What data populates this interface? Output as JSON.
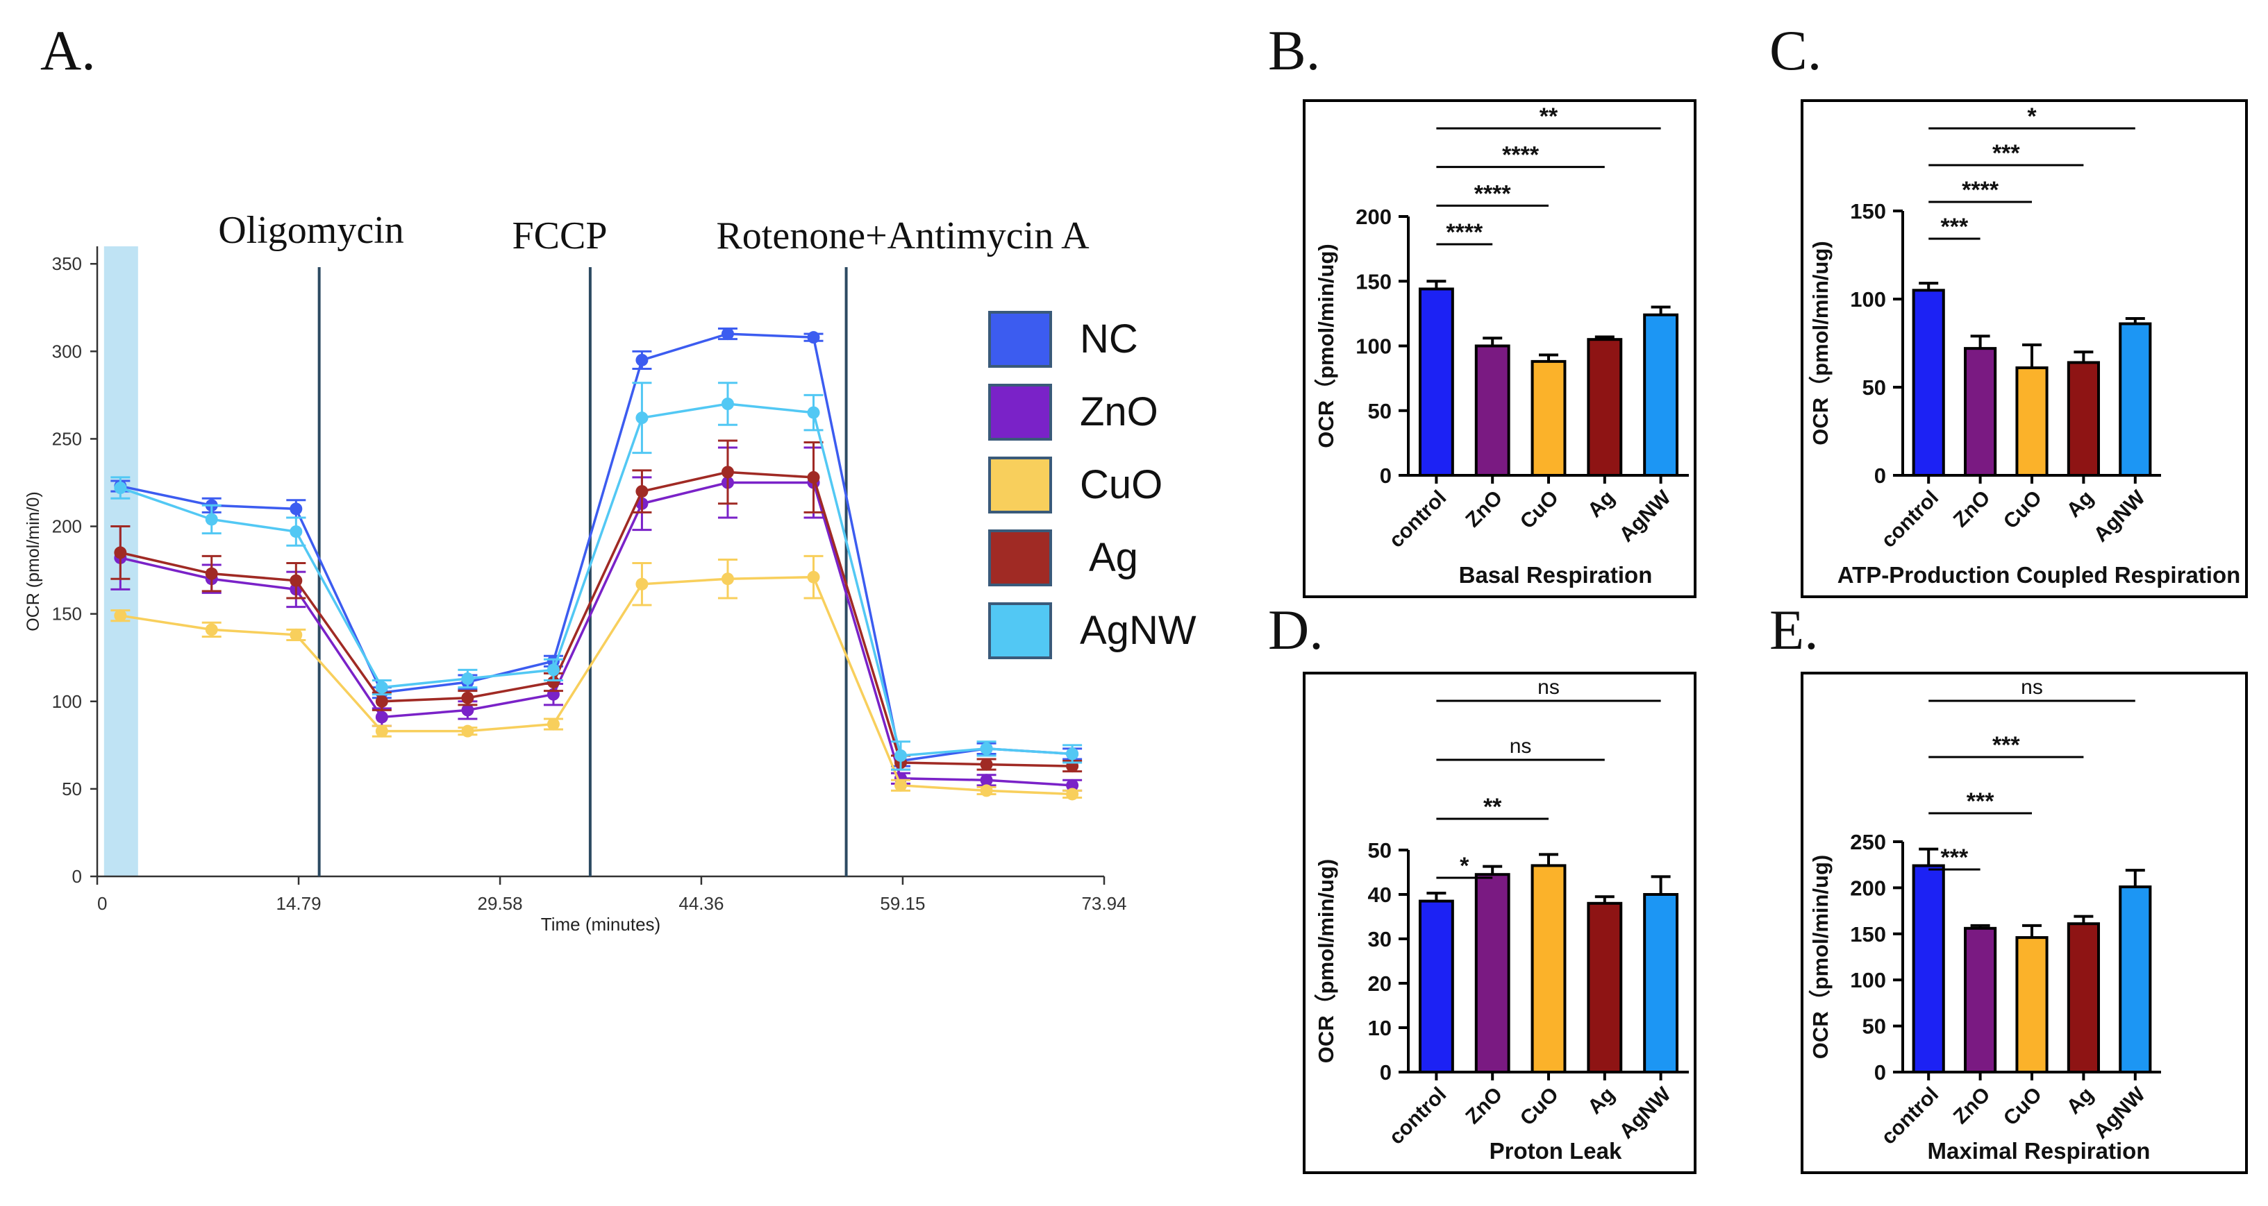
{
  "colors": {
    "NC": "#3c5cf0",
    "ZnO": "#7a22c8",
    "CuO": "#f8cf5c",
    "Ag": "#a02a24",
    "AgNW": "#52c8f4",
    "vline": "#2c4a62",
    "shade": "#bfe3f4",
    "bar_control": "#1c22f4",
    "bar_ZnO": "#7a1a82",
    "bar_CuO": "#fbb22a",
    "bar_Ag": "#8e1414",
    "bar_AgNW": "#1c96f4"
  },
  "chart_data": [
    {
      "id": "A",
      "panel_label": "A.",
      "type": "line",
      "title": "",
      "xlabel": "Time (minutes)",
      "ylabel": "OCR (pmol/min/0)",
      "xlim": [
        0,
        73.94
      ],
      "ylim": [
        0,
        360
      ],
      "x_ticks": [
        0,
        14.79,
        29.58,
        44.36,
        59.15,
        73.94
      ],
      "x_tick_labels": [
        "0",
        "14.79",
        "29.58",
        "44.36",
        "59.15",
        "73.94"
      ],
      "y_ticks": [
        0,
        50,
        100,
        150,
        200,
        250,
        300,
        350
      ],
      "y_tick_labels": [
        "0",
        "50",
        "100",
        "150",
        "200",
        "250",
        "300",
        "350"
      ],
      "injections": [
        {
          "x": 16.3,
          "label": "Oligomycin"
        },
        {
          "x": 36.2,
          "label": "FCCP"
        },
        {
          "x": 55.0,
          "label": "Rotenone+Antimycin A"
        }
      ],
      "shaded_region": [
        0.5,
        3.0
      ],
      "x": [
        1.7,
        8.4,
        14.6,
        20.9,
        27.2,
        33.5,
        40.0,
        46.3,
        52.6,
        59.0,
        65.3,
        71.6
      ],
      "series": [
        {
          "name": "NC",
          "values": [
            223,
            212,
            210,
            105,
            111,
            123,
            295,
            310,
            308,
            66,
            73,
            70
          ],
          "err": [
            3,
            4,
            5,
            3,
            4,
            3,
            5,
            3,
            2,
            3,
            3,
            3
          ]
        },
        {
          "name": "ZnO",
          "values": [
            182,
            170,
            164,
            91,
            95,
            104,
            213,
            225,
            225,
            56,
            55,
            52
          ],
          "err": [
            18,
            8,
            10,
            5,
            5,
            6,
            15,
            20,
            20,
            3,
            3,
            3
          ]
        },
        {
          "name": "CuO",
          "values": [
            149,
            141,
            138,
            83,
            83,
            87,
            167,
            170,
            171,
            52,
            49,
            47
          ],
          "err": [
            3,
            4,
            3,
            3,
            2,
            3,
            12,
            11,
            12,
            3,
            2,
            2
          ]
        },
        {
          "name": "Ag",
          "values": [
            185,
            173,
            169,
            100,
            102,
            111,
            220,
            231,
            228,
            65,
            64,
            63
          ],
          "err": [
            15,
            10,
            10,
            5,
            4,
            5,
            12,
            18,
            20,
            4,
            3,
            3
          ]
        },
        {
          "name": "AgNW",
          "values": [
            222,
            204,
            197,
            108,
            113,
            118,
            262,
            270,
            265,
            69,
            73,
            70
          ],
          "err": [
            6,
            8,
            8,
            4,
            5,
            6,
            20,
            12,
            10,
            8,
            4,
            5
          ]
        }
      ],
      "legend": [
        "NC",
        "ZnO",
        "CuO",
        "Ag",
        "AgNW"
      ]
    },
    {
      "id": "B",
      "panel_label": "B.",
      "type": "bar",
      "title": "Basal Respiration",
      "ylabel": "OCR（pmol/min/ug)",
      "categories": [
        "control",
        "ZnO",
        "CuO",
        "Ag",
        "AgNW"
      ],
      "values": [
        144,
        100,
        88,
        105,
        124
      ],
      "err": [
        6,
        6,
        5,
        2,
        6
      ],
      "ylim": [
        0,
        200
      ],
      "y_ticks": [
        0,
        50,
        100,
        150,
        200
      ],
      "y_tick_labels": [
        "0",
        "50",
        "100",
        "150",
        "200"
      ],
      "significance": [
        {
          "to": "ZnO",
          "label": "****"
        },
        {
          "to": "CuO",
          "label": "****"
        },
        {
          "to": "Ag",
          "label": "****"
        },
        {
          "to": "AgNW",
          "label": "**"
        }
      ]
    },
    {
      "id": "C",
      "panel_label": "C.",
      "type": "bar",
      "title": "ATP-Production Coupled Respiration",
      "ylabel": "OCR（pmol/min/ug)",
      "categories": [
        "control",
        "ZnO",
        "CuO",
        "Ag",
        "AgNW"
      ],
      "values": [
        105,
        72,
        61,
        64,
        86
      ],
      "err": [
        4,
        7,
        13,
        6,
        3
      ],
      "ylim": [
        0,
        150
      ],
      "y_ticks": [
        0,
        50,
        100,
        150
      ],
      "y_tick_labels": [
        "0",
        "50",
        "100",
        "150"
      ],
      "significance": [
        {
          "to": "ZnO",
          "label": "***"
        },
        {
          "to": "CuO",
          "label": "****"
        },
        {
          "to": "Ag",
          "label": "***"
        },
        {
          "to": "AgNW",
          "label": "*"
        }
      ]
    },
    {
      "id": "D",
      "panel_label": "D.",
      "type": "bar",
      "title": "Proton Leak",
      "ylabel": "OCR（pmol/min/ug)",
      "categories": [
        "control",
        "ZnO",
        "CuO",
        "Ag",
        "AgNW"
      ],
      "values": [
        38.5,
        44.5,
        46.5,
        38,
        40
      ],
      "err": [
        1.8,
        1.8,
        2.5,
        1.5,
        4
      ],
      "ylim": [
        0,
        50
      ],
      "y_ticks": [
        0,
        10,
        20,
        30,
        40,
        50
      ],
      "y_tick_labels": [
        "0",
        "10",
        "20",
        "30",
        "40",
        "50"
      ],
      "significance": [
        {
          "to": "ZnO",
          "label": "*"
        },
        {
          "to": "CuO",
          "label": "**"
        },
        {
          "to": "Ag",
          "label": "ns"
        },
        {
          "to": "AgNW",
          "label": "ns"
        }
      ]
    },
    {
      "id": "E",
      "panel_label": "E.",
      "type": "bar",
      "title": "Maximal Respiration",
      "ylabel": "OCR（pmol/min/ug)",
      "categories": [
        "control",
        "ZnO",
        "CuO",
        "Ag",
        "AgNW"
      ],
      "values": [
        224,
        156,
        146,
        161,
        201
      ],
      "err": [
        18,
        3,
        13,
        8,
        18
      ],
      "ylim": [
        0,
        250
      ],
      "y_ticks": [
        0,
        50,
        100,
        150,
        200,
        250
      ],
      "y_tick_labels": [
        "0",
        "50",
        "100",
        "150",
        "200",
        "250"
      ],
      "significance": [
        {
          "to": "ZnO",
          "label": "***"
        },
        {
          "to": "CuO",
          "label": "***"
        },
        {
          "to": "Ag",
          "label": "***"
        },
        {
          "to": "AgNW",
          "label": "ns"
        }
      ]
    }
  ]
}
